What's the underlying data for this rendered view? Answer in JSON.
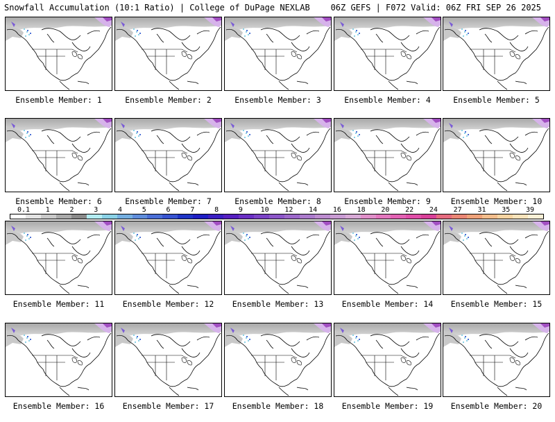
{
  "header": {
    "left_title": "Snowfall Accumulation (10:1 Ratio) | College of DuPage NEXLAB",
    "right_title": "06Z GEFS | F072 Valid: 06Z FRI SEP 26 2025"
  },
  "colorbar": {
    "labels": [
      "0.1",
      "1",
      "2",
      "3",
      "4",
      "5",
      "6",
      "7",
      "8",
      "9",
      "10",
      "12",
      "14",
      "16",
      "18",
      "20",
      "22",
      "24",
      "27",
      "31",
      "35",
      "39"
    ],
    "colors": [
      "#ffffff",
      "#e3e3e3",
      "#c8c8c8",
      "#a9a9a9",
      "#8a8a8a",
      "#b3ecf2",
      "#8ad1e6",
      "#74aee0",
      "#5f8ddb",
      "#4a6ed6",
      "#3753d0",
      "#1f35c6",
      "#1e1ec4",
      "#3a1ec2",
      "#561fc0",
      "#6a2fc4",
      "#7b43c6",
      "#8c56c8",
      "#9c68ca",
      "#ab7bcc",
      "#bc8ccf",
      "#c89bd2",
      "#d7a9d5",
      "#df8fc8",
      "#e277bd",
      "#e262b3",
      "#e04ea8",
      "#d84098",
      "#e56b7f",
      "#ea8675",
      "#eea27a",
      "#f2bd8c",
      "#f6d4a2",
      "#f8e3bb",
      "#fbf0d6"
    ]
  },
  "panels": [
    {
      "caption": "Ensemble Member: 1"
    },
    {
      "caption": "Ensemble Member: 2"
    },
    {
      "caption": "Ensemble Member: 3"
    },
    {
      "caption": "Ensemble Member: 4"
    },
    {
      "caption": "Ensemble Member: 5"
    },
    {
      "caption": "Ensemble Member: 6"
    },
    {
      "caption": "Ensemble Member: 7"
    },
    {
      "caption": "Ensemble Member: 8"
    },
    {
      "caption": "Ensemble Member: 9"
    },
    {
      "caption": "Ensemble Member: 10"
    },
    {
      "caption": "Ensemble Member: 11"
    },
    {
      "caption": "Ensemble Member: 12"
    },
    {
      "caption": "Ensemble Member: 13"
    },
    {
      "caption": "Ensemble Member: 14"
    },
    {
      "caption": "Ensemble Member: 15"
    },
    {
      "caption": "Ensemble Member: 16"
    },
    {
      "caption": "Ensemble Member: 17"
    },
    {
      "caption": "Ensemble Member: 18"
    },
    {
      "caption": "Ensemble Member: 19"
    },
    {
      "caption": "Ensemble Member: 20"
    }
  ]
}
